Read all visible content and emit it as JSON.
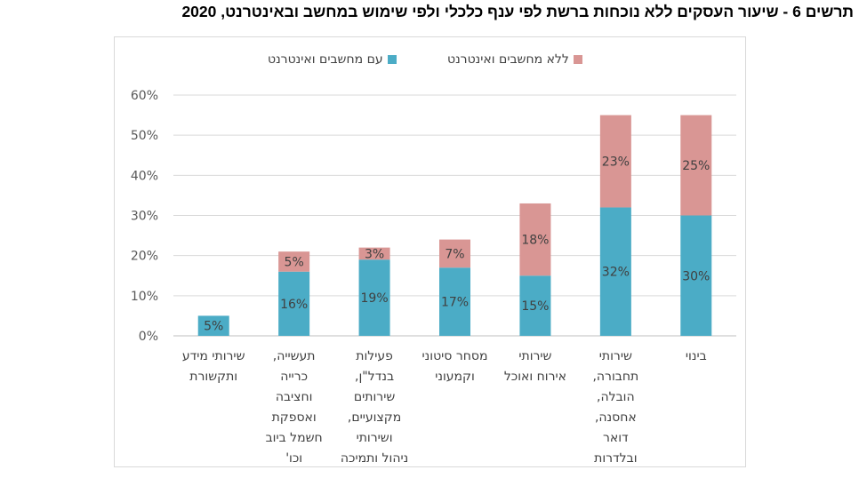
{
  "title": "תרשים 6 - שיעור העסקים ללא נוכחות ברשת לפי ענף כלכלי ולפי שימוש במחשב ובאינטרנט, 2020",
  "legend": [
    {
      "label": "ללא מחשבים ואינטרנט",
      "color": "#d99694"
    },
    {
      "label": "עם מחשבים ואינטרנט",
      "color": "#4bacc6"
    }
  ],
  "chart_data": {
    "type": "bar",
    "stacked": true,
    "title": "תרשים 6 - שיעור העסקים ללא נוכחות ברשת לפי ענף כלכלי ולפי שימוש במחשב ובאינטרנט, 2020",
    "categories": [
      "שירותי מידע ותקשורת",
      "תעשייה, כרייה וחציבה ואספקת חשמל ביוב וכו'",
      "פעילות בנדל\"ן, שירותים מקצועיים, ושירותי ניהול ותמיכה",
      "מסחר סיטוני וקמעוני",
      "שירותי אירוח ואוכל",
      "שירותי תחבורה, הובלה, אחסנה, דואר ובלדרות",
      "בינוי"
    ],
    "category_lines": [
      [
        "שירותי מידע",
        "ותקשורת"
      ],
      [
        "תעשייה,",
        "כרייה",
        "וחציבה",
        "ואספקת",
        "חשמל ביוב",
        "וכו'"
      ],
      [
        "פעילות",
        "בנדל\"ן,",
        "שירותים",
        "מקצועיים,",
        "ושירותי",
        "ניהול ותמיכה"
      ],
      [
        "מסחר סיטוני",
        "וקמעוני"
      ],
      [
        "שירותי",
        "אירוח ואוכל"
      ],
      [
        "שירותי",
        "תחבורה,",
        "הובלה,",
        "אחסנה,",
        "דואר",
        "ובלדרות"
      ],
      [
        "בינוי"
      ]
    ],
    "series": [
      {
        "name": "עם מחשבים ואינטרנט",
        "color": "#4bacc6",
        "values": [
          5,
          16,
          19,
          17,
          15,
          32,
          30
        ],
        "labels": [
          "5%",
          "16%",
          "19%",
          "17%",
          "15%",
          "32%",
          "30%"
        ]
      },
      {
        "name": "ללא מחשבים ואינטרנט",
        "color": "#d99694",
        "values": [
          0,
          5,
          3,
          7,
          18,
          23,
          25
        ],
        "labels": [
          "",
          "5%",
          "3%",
          "7%",
          "18%",
          "23%",
          "25%"
        ]
      }
    ],
    "ylim": [
      0,
      60
    ],
    "yticks": [
      0,
      10,
      20,
      30,
      40,
      50,
      60
    ],
    "ytick_labels": [
      "0%",
      "10%",
      "20%",
      "30%",
      "40%",
      "50%",
      "60%"
    ],
    "grid": true,
    "legend_position": "top"
  }
}
